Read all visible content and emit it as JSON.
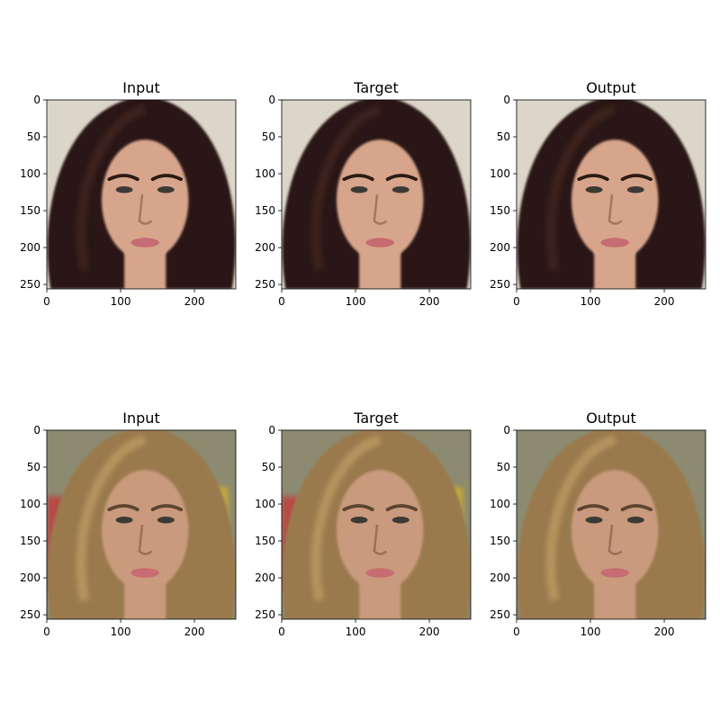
{
  "figure": {
    "background": "#ffffff",
    "panels": [
      {
        "title": "Input",
        "row": 0,
        "col": 0,
        "subject": "dark-hair-woman"
      },
      {
        "title": "Target",
        "row": 0,
        "col": 1,
        "subject": "dark-hair-woman"
      },
      {
        "title": "Output",
        "row": 0,
        "col": 2,
        "subject": "dark-hair-woman"
      },
      {
        "title": "Input",
        "row": 1,
        "col": 0,
        "subject": "blonde-hair-woman"
      },
      {
        "title": "Target",
        "row": 1,
        "col": 1,
        "subject": "blonde-hair-woman"
      },
      {
        "title": "Output",
        "row": 1,
        "col": 2,
        "subject": "blonde-hair-woman"
      }
    ],
    "axes": {
      "xlim": [
        0,
        256
      ],
      "ylim": [
        256,
        0
      ],
      "x_ticks": [
        "0",
        "100",
        "200"
      ],
      "x_tick_values": [
        0,
        100,
        200
      ],
      "y_ticks": [
        "0",
        "50",
        "100",
        "150",
        "200",
        "250"
      ],
      "y_tick_values": [
        0,
        50,
        100,
        150,
        200,
        250
      ]
    },
    "palette": {
      "dark_hair": "#2a1812",
      "dark_hair_highlight": "#4a2c20",
      "dark_bg": "#dcd6ca",
      "dark_skin": "#d7a58b",
      "blonde_hair": "#9a7a4d",
      "blonde_hair_highlight": "#c9a66b",
      "blonde_bg": "#8c8a70",
      "blonde_skin": "#c99a7d",
      "lips": "#c66c72",
      "eyes": "#3d3a34"
    }
  }
}
